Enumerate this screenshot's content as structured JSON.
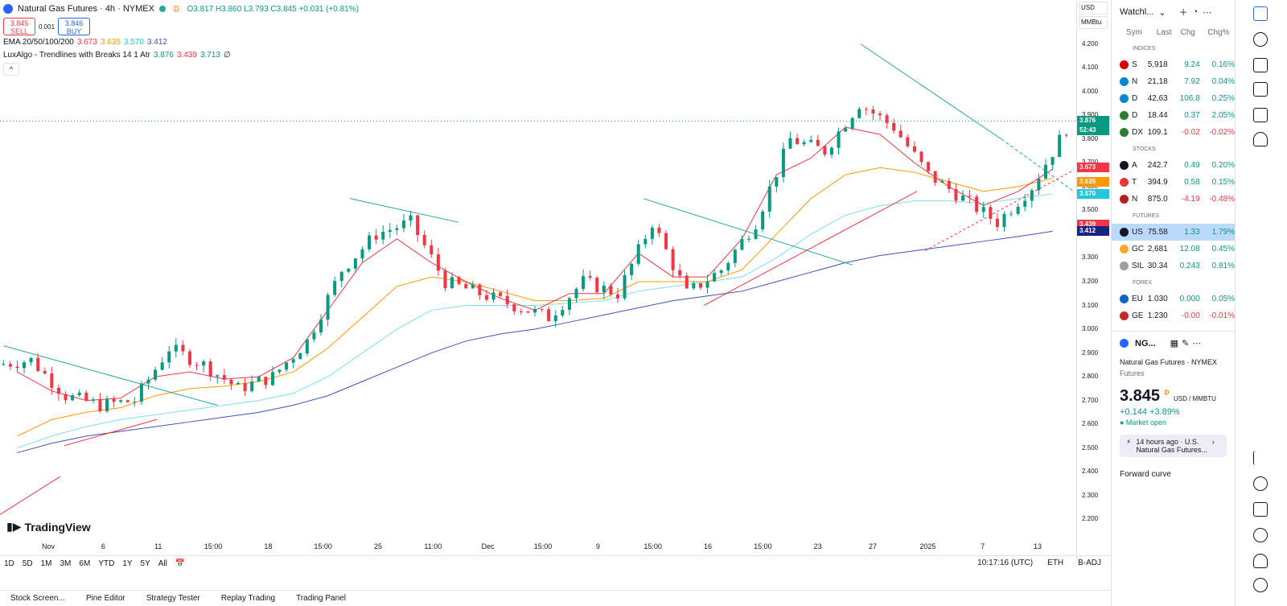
{
  "header": {
    "symbol_title": "Natural Gas Futures · 4h · NYMEX",
    "pill": "D",
    "ohlc": "O3.817 H3.860 L3.793 C3.845 +0.031 (+0.81%)",
    "sell_price": "3.845",
    "sell_label": "SELL",
    "spread": "0.001",
    "buy_price": "3.846",
    "buy_label": "BUY",
    "ema_name": "EMA 20/50/100/200",
    "ema_values": [
      "3.673",
      "3.635",
      "3.570",
      "3.412"
    ],
    "lux_name": "LuxAlgo - Trendlines with Breaks 14 1 Atr",
    "lux_values": [
      "3.876",
      "3.439",
      "3.713",
      "∅"
    ],
    "collapse": "^"
  },
  "colors": {
    "up": "#089981",
    "down": "#f23645",
    "ema20": "#f23645",
    "ema50": "#ff9800",
    "ema100": "#80deea",
    "ema200": "#3f51b5",
    "trend": "#26a69a"
  },
  "axis": {
    "currency": "USD",
    "unit": "MMBtu",
    "ticks": [
      "4.200",
      "4.100",
      "4.000",
      "3.900",
      "3.800",
      "3.700",
      "3.600",
      "3.500",
      "3.400",
      "3.300",
      "3.200",
      "3.100",
      "3.000",
      "2.900",
      "2.800",
      "2.700",
      "2.600",
      "2.500",
      "2.400",
      "2.300",
      "2.200"
    ],
    "tags": [
      {
        "text": "3.876",
        "sub": "52:43",
        "color": "#089981"
      },
      {
        "text": "3.673",
        "color": "#f23645"
      },
      {
        "text": "3.635",
        "color": "#ff9800"
      },
      {
        "text": "3.570",
        "color": "#26c6da"
      },
      {
        "text": "3.439",
        "color": "#f23645"
      },
      {
        "text": "3.412",
        "color": "#1a237e"
      }
    ],
    "time_labels": [
      "Nov",
      "6",
      "11",
      "15:00",
      "18",
      "15:00",
      "25",
      "11:00",
      "Dec",
      "15:00",
      "9",
      "15:00",
      "16",
      "15:00",
      "23",
      "27",
      "2025",
      "7",
      "13"
    ]
  },
  "chart_data": {
    "type": "candlestick",
    "x": [
      "Oct 31",
      "Nov 4",
      "Nov 6",
      "Nov 8",
      "Nov 11",
      "Nov 13",
      "Nov 15",
      "Nov 18",
      "Nov 20",
      "Nov 22",
      "Nov 25",
      "Nov 27",
      "Nov 29",
      "Dec 2",
      "Dec 4",
      "Dec 6",
      "Dec 9",
      "Dec 11",
      "Dec 13",
      "Dec 16",
      "Dec 18",
      "Dec 20",
      "Dec 23",
      "Dec 25",
      "Dec 27",
      "Dec 30",
      "Jan 2",
      "Jan 6",
      "Jan 8",
      "Jan 10",
      "Jan 13"
    ],
    "close": [
      2.87,
      2.72,
      2.68,
      2.7,
      2.92,
      2.85,
      2.75,
      2.8,
      2.95,
      3.25,
      3.4,
      3.45,
      3.2,
      3.15,
      3.1,
      3.05,
      3.2,
      3.15,
      3.45,
      3.15,
      3.25,
      3.45,
      3.8,
      3.75,
      3.95,
      3.85,
      3.65,
      3.55,
      3.45,
      3.6,
      3.845
    ],
    "ylim": [
      2.15,
      4.25
    ],
    "ema20": [
      2.82,
      2.74,
      2.7,
      2.71,
      2.8,
      2.82,
      2.79,
      2.8,
      2.88,
      3.08,
      3.28,
      3.38,
      3.28,
      3.2,
      3.13,
      3.08,
      3.15,
      3.15,
      3.32,
      3.22,
      3.22,
      3.38,
      3.65,
      3.72,
      3.85,
      3.82,
      3.7,
      3.6,
      3.52,
      3.58,
      3.673
    ],
    "ema50": [
      2.55,
      2.62,
      2.65,
      2.67,
      2.72,
      2.75,
      2.76,
      2.78,
      2.82,
      2.92,
      3.05,
      3.18,
      3.22,
      3.2,
      3.16,
      3.12,
      3.12,
      3.13,
      3.2,
      3.2,
      3.2,
      3.25,
      3.4,
      3.55,
      3.65,
      3.68,
      3.66,
      3.62,
      3.58,
      3.6,
      3.635
    ],
    "ema100": [
      2.5,
      2.55,
      2.59,
      2.62,
      2.64,
      2.66,
      2.68,
      2.7,
      2.73,
      2.8,
      2.9,
      3.0,
      3.08,
      3.1,
      3.1,
      3.1,
      3.11,
      3.12,
      3.16,
      3.18,
      3.2,
      3.22,
      3.3,
      3.4,
      3.48,
      3.52,
      3.54,
      3.54,
      3.53,
      3.55,
      3.57
    ],
    "ema200": [
      2.48,
      2.52,
      2.55,
      2.57,
      2.59,
      2.61,
      2.63,
      2.65,
      2.68,
      2.72,
      2.78,
      2.84,
      2.9,
      2.95,
      2.98,
      3.0,
      3.03,
      3.06,
      3.09,
      3.12,
      3.14,
      3.16,
      3.2,
      3.24,
      3.28,
      3.31,
      3.33,
      3.35,
      3.37,
      3.39,
      3.412
    ]
  },
  "bottom": {
    "ranges": [
      "1D",
      "5D",
      "1M",
      "3M",
      "6M",
      "YTD",
      "1Y",
      "5Y",
      "All"
    ],
    "clock": "10:17:16 (UTC)",
    "eth": "ETH",
    "badj": "B-ADJ",
    "panels": [
      "Stock Screen...",
      "Pine Editor",
      "Strategy Tester",
      "Replay Trading",
      "Trading Panel"
    ],
    "logo": "TradingView"
  },
  "watchlist": {
    "title": "Watchl...",
    "cols": [
      "Sym",
      "Last",
      "Chg",
      "Chg%"
    ],
    "sections": [
      {
        "name": "INDICES",
        "rows": [
          {
            "sym": "S",
            "last": "5,918",
            "chg": "9.24",
            "chgp": "0.16%",
            "dir": "pos",
            "color": "#d50000"
          },
          {
            "sym": "N",
            "last": "21,18",
            "chg": "7.92",
            "chgp": "0.04%",
            "dir": "pos",
            "color": "#0288d1"
          },
          {
            "sym": "D",
            "last": "42,63",
            "chg": "106.8",
            "chgp": "0.25%",
            "dir": "pos",
            "color": "#0288d1"
          },
          {
            "sym": "D",
            "last": "18.44",
            "chg": "0.37",
            "chgp": "2.05%",
            "dir": "pos",
            "color": "#2e7d32"
          },
          {
            "sym": "DX",
            "last": "109.1",
            "chg": "-0.02",
            "chgp": "-0.02%",
            "dir": "neg",
            "color": "#2e7d32"
          }
        ]
      },
      {
        "name": "STOCKS",
        "rows": [
          {
            "sym": "A",
            "last": "242.7",
            "chg": "0.49",
            "chgp": "0.20%",
            "dir": "pos",
            "color": "#131722"
          },
          {
            "sym": "T",
            "last": "394.9",
            "chg": "0.58",
            "chgp": "0.15%",
            "dir": "pos",
            "color": "#e53935"
          },
          {
            "sym": "N",
            "last": "875.0",
            "chg": "-4.19",
            "chgp": "-0.48%",
            "dir": "neg",
            "color": "#b71c1c"
          }
        ]
      },
      {
        "name": "FUTURES",
        "rows": [
          {
            "sym": "US",
            "last": "75.58",
            "chg": "1.33",
            "chgp": "1.79%",
            "dir": "pos",
            "color": "#131722",
            "active": true
          },
          {
            "sym": "GC",
            "last": "2,681",
            "chg": "12.08",
            "chgp": "0.45%",
            "dir": "pos",
            "color": "#f9a825"
          },
          {
            "sym": "SIL",
            "last": "30.34",
            "chg": "0.243",
            "chgp": "0.81%",
            "dir": "pos",
            "color": "#9e9e9e"
          }
        ]
      },
      {
        "name": "FOREX",
        "rows": [
          {
            "sym": "EU",
            "last": "1.030",
            "chg": "0.000",
            "chgp": "0.05%",
            "dir": "pos",
            "color": "#1565c0"
          },
          {
            "sym": "GE",
            "last": "1.230",
            "chg": "-0.00",
            "chgp": "-0.01%",
            "dir": "neg",
            "color": "#c62828"
          }
        ]
      }
    ]
  },
  "detail": {
    "sym": "NG...",
    "name": "Natural Gas Futures",
    "exchange": "· NYMEX",
    "sub": "Futures",
    "price": "3.845",
    "price_sup": "D",
    "currency": "USD / MMBTU",
    "change": "+0.144  +3.89%",
    "market": "● Market open",
    "news_time": "14 hours ago · U.S.",
    "news_text": "Natural Gas Futures...",
    "forward": "Forward curve"
  }
}
